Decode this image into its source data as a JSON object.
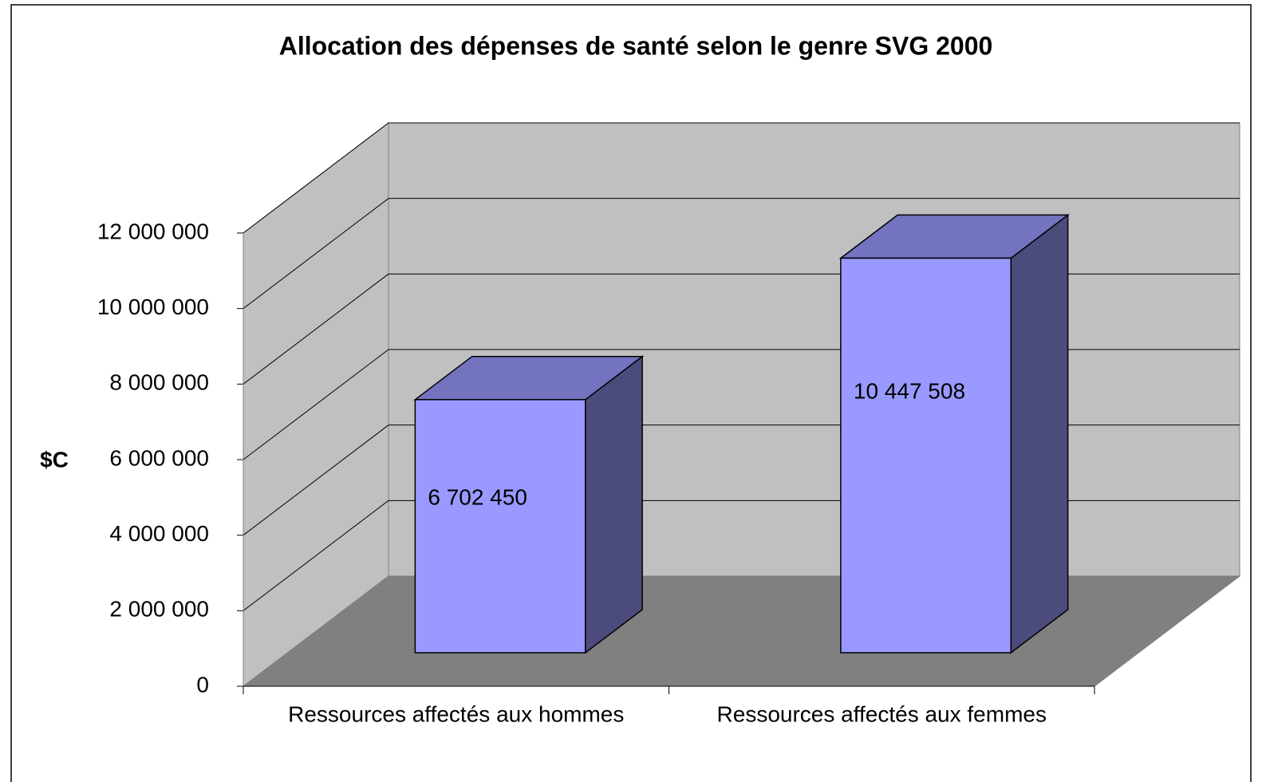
{
  "chart_data": {
    "type": "bar3d",
    "title": "Allocation des dépenses de santé selon le genre SVG 2000",
    "y_label": "$C",
    "categories": [
      "Ressources affectés aux hommes",
      "Ressources affectés aux femmes"
    ],
    "values": [
      6702450,
      10447508
    ],
    "value_labels": [
      "6 702 450",
      "10 447 508"
    ],
    "color": "#9999ff",
    "ylim": [
      0,
      12000000
    ],
    "yticks": [
      0,
      {
        "value": 2000000,
        "label": "2 000 000"
      },
      {
        "value": 4000000,
        "label": "4 000 000"
      },
      {
        "value": 6000000,
        "label": "6 000 000"
      },
      {
        "value": 8000000,
        "label": "8 000 000"
      },
      {
        "value": 10000000,
        "label": "10 000 000"
      },
      {
        "value": 12000000,
        "label": "12 000 000"
      }
    ],
    "grid": true
  }
}
